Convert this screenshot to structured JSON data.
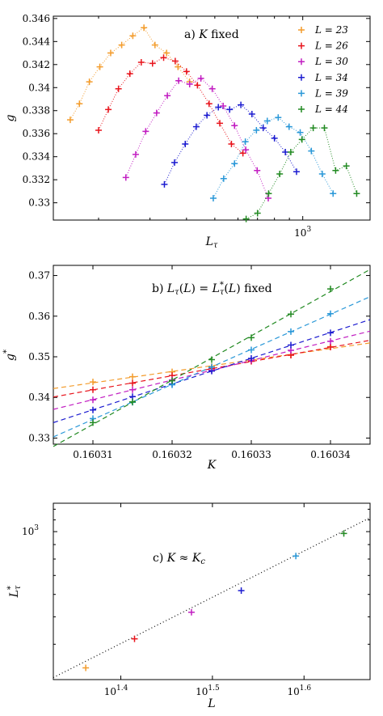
{
  "colors": {
    "L23": "#f39c2c",
    "L26": "#e8141c",
    "L30": "#c21ec2",
    "L34": "#1c1cd0",
    "L39": "#2a98d8",
    "L44": "#228a22"
  },
  "chart_data": [
    {
      "type": "scatter",
      "title": "a) K fixed",
      "xlabel": "L_τ",
      "ylabel": "g",
      "xscale": "log",
      "xlim": [
        140,
        1700
      ],
      "ylim": [
        0.3285,
        0.3462
      ],
      "xticks": [
        {
          "v": 1000,
          "label": "10"
        }
      ],
      "xtick_sup": "3",
      "yticks": [
        0.33,
        0.332,
        0.334,
        0.336,
        0.338,
        0.34,
        0.342,
        0.344,
        0.346
      ],
      "ytick_labels": [
        "0.33",
        "0.332",
        "0.334",
        "0.336",
        "0.338",
        "0.34",
        "0.342",
        "0.344",
        "0.346"
      ],
      "legend_entries": [
        "L = 23",
        "L = 26",
        "L = 30",
        "L = 34",
        "L = 39",
        "L = 44"
      ],
      "legend_position": "top-right",
      "series": [
        {
          "name": "L = 23",
          "color_key": "L23",
          "x": [
            160,
            172,
            186,
            202,
            220,
            240,
            262,
            286,
            312,
            342,
            374,
            410
          ],
          "y": [
            0.3372,
            0.3386,
            0.3405,
            0.3418,
            0.343,
            0.3437,
            0.3445,
            0.3452,
            0.3437,
            0.343,
            0.3418,
            0.3405
          ]
        },
        {
          "name": "L = 26",
          "color_key": "L26",
          "x": [
            200,
            216,
            234,
            256,
            280,
            306,
            334,
            366,
            400,
            436,
            478,
            520,
            570,
            624
          ],
          "y": [
            0.3363,
            0.3381,
            0.3399,
            0.3412,
            0.3422,
            0.3421,
            0.3426,
            0.3423,
            0.3414,
            0.3402,
            0.3386,
            0.3369,
            0.3351,
            0.3343
          ]
        },
        {
          "name": "L = 30",
          "color_key": "L30",
          "x": [
            248,
            268,
            290,
            316,
            344,
            376,
            410,
            448,
            490,
            534,
            584,
            638,
            698,
            762
          ],
          "y": [
            0.3322,
            0.3342,
            0.3362,
            0.3378,
            0.3393,
            0.3406,
            0.3403,
            0.3408,
            0.3399,
            0.3384,
            0.3367,
            0.3346,
            0.3328,
            0.3304
          ]
        },
        {
          "name": "L = 34",
          "color_key": "L34",
          "x": [
            336,
            364,
            396,
            432,
            470,
            514,
            562,
            614,
            670,
            732,
            800,
            872,
            952
          ],
          "y": [
            0.3316,
            0.3335,
            0.3351,
            0.3366,
            0.3376,
            0.3383,
            0.3381,
            0.3385,
            0.3377,
            0.3365,
            0.3356,
            0.3344,
            0.3327
          ]
        },
        {
          "name": "L = 39",
          "color_key": "L39",
          "x": [
            494,
            536,
            584,
            636,
            694,
            756,
            824,
            898,
            980,
            1070,
            1166,
            1270
          ],
          "y": [
            0.3304,
            0.3321,
            0.3334,
            0.3353,
            0.3363,
            0.3371,
            0.3374,
            0.3366,
            0.3361,
            0.3345,
            0.3325,
            0.3308
          ]
        },
        {
          "name": "L = 44",
          "color_key": "L44",
          "x": [
            640,
            700,
            764,
            834,
            910,
            994,
            1086,
            1186,
            1296,
            1410,
            1530
          ],
          "y": [
            0.3286,
            0.3291,
            0.3308,
            0.3325,
            0.3344,
            0.3355,
            0.3365,
            0.3365,
            0.3328,
            0.3332,
            0.3308
          ]
        }
      ]
    },
    {
      "type": "line",
      "title": "b) L_τ(L) = L_τ*(L) fixed",
      "xlabel": "K",
      "ylabel": "g*",
      "xlim": [
        0.160305,
        0.160345
      ],
      "ylim": [
        0.3285,
        0.3725
      ],
      "xticks": [
        0.16031,
        0.16032,
        0.16033,
        0.16034
      ],
      "xtick_labels": [
        "0.16031",
        "0.16032",
        "0.16033",
        "0.16034"
      ],
      "yticks": [
        0.33,
        0.34,
        0.35,
        0.36,
        0.37
      ],
      "ytick_labels": [
        "0.33",
        "0.34",
        "0.35",
        "0.36",
        "0.37"
      ],
      "x": [
        0.16031,
        0.160315,
        0.16032,
        0.160325,
        0.16033,
        0.160335,
        0.16034
      ],
      "series": [
        {
          "name": "L = 23",
          "color_key": "L23",
          "y": [
            0.3438,
            0.3451,
            0.3463,
            0.3476,
            0.3489,
            0.3504,
            0.3525
          ]
        },
        {
          "name": "L = 26",
          "color_key": "L26",
          "y": [
            0.3419,
            0.3435,
            0.3454,
            0.3471,
            0.3489,
            0.3504,
            0.3524
          ]
        },
        {
          "name": "L = 30",
          "color_key": "L30",
          "y": [
            0.3394,
            0.3419,
            0.3443,
            0.3467,
            0.3491,
            0.3516,
            0.3538
          ]
        },
        {
          "name": "L = 34",
          "color_key": "L34",
          "y": [
            0.3369,
            0.3402,
            0.3433,
            0.3465,
            0.3496,
            0.3529,
            0.3559
          ]
        },
        {
          "name": "L = 39",
          "color_key": "L39",
          "y": [
            0.3348,
            0.3388,
            0.3431,
            0.3475,
            0.3517,
            0.3562,
            0.3606
          ]
        },
        {
          "name": "L = 44",
          "color_key": "L44",
          "y": [
            0.3338,
            0.3389,
            0.3441,
            0.3493,
            0.3547,
            0.3605,
            0.3667
          ]
        }
      ]
    },
    {
      "type": "scatter",
      "title": "c) K ≈ K_c",
      "xlabel": "L",
      "ylabel": "L_τ*",
      "xscale": "log",
      "yscale": "log",
      "xlim": [
        21.2,
        47.0
      ],
      "ylim": [
        300,
        1260
      ],
      "xticks": [
        {
          "v": 25.1189,
          "label": "10",
          "sup": "1.4"
        },
        {
          "v": 31.6228,
          "label": "10",
          "sup": "1.5"
        },
        {
          "v": 39.8107,
          "label": "10",
          "sup": "1.6"
        }
      ],
      "yticks": [
        {
          "v": 1000,
          "label": "10",
          "sup": "3"
        }
      ],
      "fit": {
        "x": [
          21.2,
          47.0
        ],
        "y": [
          305,
          1120
        ]
      },
      "points": [
        {
          "color_key": "L23",
          "x": 23,
          "y": 330
        },
        {
          "color_key": "L26",
          "x": 26,
          "y": 418
        },
        {
          "color_key": "L30",
          "x": 30,
          "y": 519
        },
        {
          "color_key": "L34",
          "x": 34,
          "y": 619
        },
        {
          "color_key": "L39",
          "x": 39,
          "y": 820
        },
        {
          "color_key": "L44",
          "x": 44,
          "y": 985
        }
      ]
    }
  ]
}
